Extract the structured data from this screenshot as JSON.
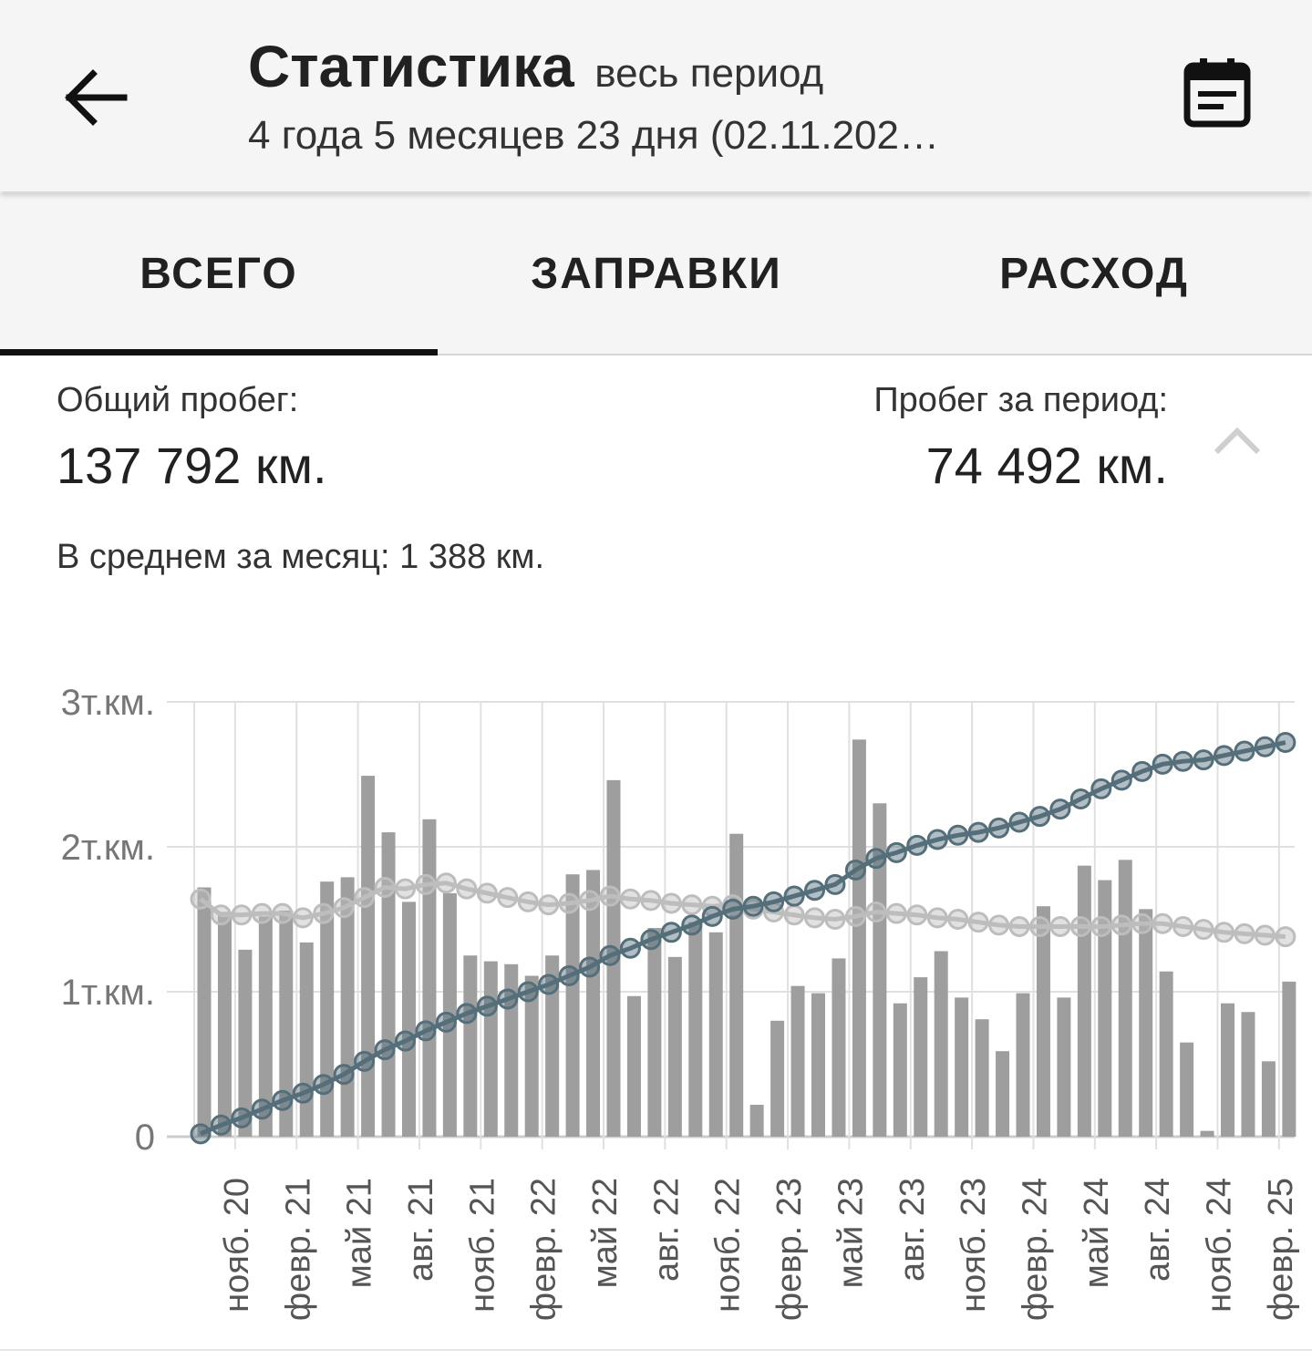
{
  "header": {
    "title": "Статистика",
    "title_suffix": "весь период",
    "subtitle": "4 года 5 месяцев 23 дня (02.11.202…",
    "back_icon": "arrow-left-icon",
    "calendar_icon": "calendar-icon"
  },
  "tabs": [
    {
      "label": "ВСЕГО",
      "active": true
    },
    {
      "label": "ЗАПРАВКИ",
      "active": false
    },
    {
      "label": "РАСХОД",
      "active": false
    }
  ],
  "summary": {
    "total_label": "Общий пробег:",
    "total_value": "137 792 км.",
    "period_label": "Пробег за период:",
    "period_value": "74 492 км.",
    "average_text": "В среднем за месяц: 1 388 км.",
    "collapse_icon": "chevron-up-icon"
  },
  "colors": {
    "bar": "#9e9e9e",
    "cumulative_line": "#546e7a",
    "average_line": "#bdbdbd",
    "grid": "#e0e0e0"
  },
  "chart_data": {
    "type": "bar",
    "ylim": [
      0,
      3000
    ],
    "y_ticks": [
      {
        "value": 0,
        "label": "0"
      },
      {
        "value": 1000,
        "label": "1т.км."
      },
      {
        "value": 2000,
        "label": "2т.км."
      },
      {
        "value": 3000,
        "label": "3т.км."
      }
    ],
    "x_tick_labels": [
      "нояб. 20",
      "февр. 21",
      "май 21",
      "авг. 21",
      "нояб. 21",
      "февр. 22",
      "май 22",
      "авг. 22",
      "нояб. 22",
      "февр. 23",
      "май 23",
      "авг. 23",
      "нояб. 23",
      "февр. 24",
      "май 24",
      "авг. 24",
      "нояб. 24",
      "февр. 25"
    ],
    "first_month": "2020-09",
    "series": [
      {
        "type": "bar",
        "values": [
          1720,
          1550,
          1290,
          1520,
          1560,
          1340,
          1760,
          1790,
          2490,
          2100,
          1620,
          2190,
          1680,
          1250,
          1210,
          1190,
          1110,
          1250,
          1810,
          1840,
          2460,
          970,
          1440,
          1240,
          1480,
          1410,
          2090,
          220,
          800,
          1040,
          990,
          1230,
          2740,
          2300,
          920,
          1100,
          1280,
          960,
          810,
          590,
          990,
          1590,
          960,
          1870,
          1770,
          1910,
          1570,
          1140,
          650,
          40,
          920,
          860,
          520,
          1070
        ]
      },
      {
        "type": "line",
        "values": [
          20,
          80,
          130,
          190,
          250,
          300,
          360,
          430,
          520,
          600,
          660,
          730,
          790,
          850,
          900,
          950,
          1000,
          1050,
          1110,
          1170,
          1250,
          1300,
          1360,
          1410,
          1460,
          1520,
          1570,
          1590,
          1620,
          1660,
          1700,
          1740,
          1840,
          1920,
          1960,
          2010,
          2050,
          2080,
          2100,
          2130,
          2170,
          2210,
          2260,
          2330,
          2400,
          2460,
          2520,
          2570,
          2590,
          2600,
          2630,
          2660,
          2690,
          2720
        ]
      },
      {
        "type": "line",
        "values": [
          1640,
          1530,
          1530,
          1540,
          1540,
          1510,
          1540,
          1580,
          1650,
          1720,
          1710,
          1740,
          1750,
          1710,
          1680,
          1650,
          1620,
          1600,
          1610,
          1630,
          1660,
          1640,
          1630,
          1610,
          1600,
          1590,
          1600,
          1570,
          1550,
          1530,
          1510,
          1500,
          1520,
          1550,
          1540,
          1530,
          1510,
          1500,
          1480,
          1460,
          1450,
          1450,
          1450,
          1450,
          1450,
          1460,
          1470,
          1470,
          1450,
          1430,
          1410,
          1400,
          1390,
          1380
        ]
      }
    ]
  }
}
